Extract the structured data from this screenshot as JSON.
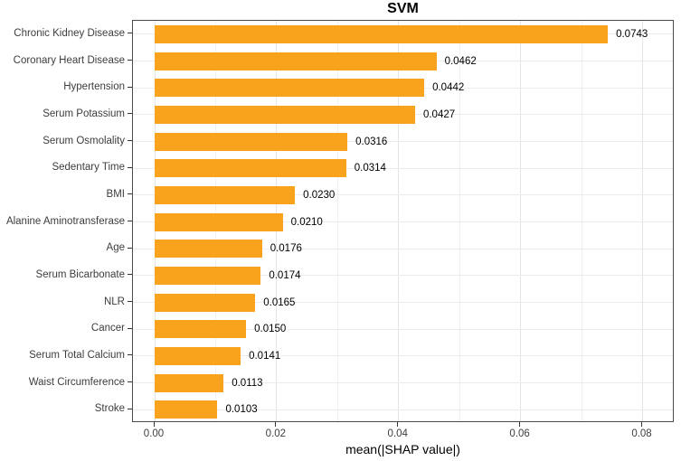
{
  "chart_data": {
    "type": "bar",
    "orientation": "horizontal",
    "title": "SVM",
    "xlabel": "mean(|SHAP value|)",
    "ylabel": "",
    "categories": [
      "Chronic Kidney Disease",
      "Coronary Heart Disease",
      "Hypertension",
      "Serum Potassium",
      "Serum Osmolality",
      "Sedentary Time",
      "BMI",
      "Alanine Aminotransferase",
      "Age",
      "Serum Bicarbonate",
      "NLR",
      "Cancer",
      "Serum Total Calcium",
      "Waist Circumference",
      "Stroke"
    ],
    "values": [
      0.0743,
      0.0462,
      0.0442,
      0.0427,
      0.0316,
      0.0314,
      0.023,
      0.021,
      0.0176,
      0.0174,
      0.0165,
      0.015,
      0.0141,
      0.0113,
      0.0103
    ],
    "value_labels": [
      "0.0743",
      "0.0462",
      "0.0442",
      "0.0427",
      "0.0316",
      "0.0314",
      "0.0230",
      "0.0210",
      "0.0176",
      "0.0174",
      "0.0165",
      "0.0150",
      "0.0141",
      "0.0113",
      "0.0103"
    ],
    "x_ticks": [
      0.0,
      0.02,
      0.04,
      0.06,
      0.08
    ],
    "x_tick_labels": [
      "0.00",
      "0.02",
      "0.04",
      "0.06",
      "0.08"
    ],
    "x_minor_ticks": [
      0.01,
      0.03,
      0.05,
      0.07
    ],
    "xlim": [
      0,
      0.0852
    ],
    "grid": true,
    "legend_position": "none",
    "colors": {
      "bar": "#F9A21C",
      "grid_major": "#e4e4e4",
      "grid_minor": "#f0f0f0",
      "panel_border": "#4a4a4a",
      "axis_text": "#3d3d3d",
      "value_text": "#000000"
    }
  }
}
